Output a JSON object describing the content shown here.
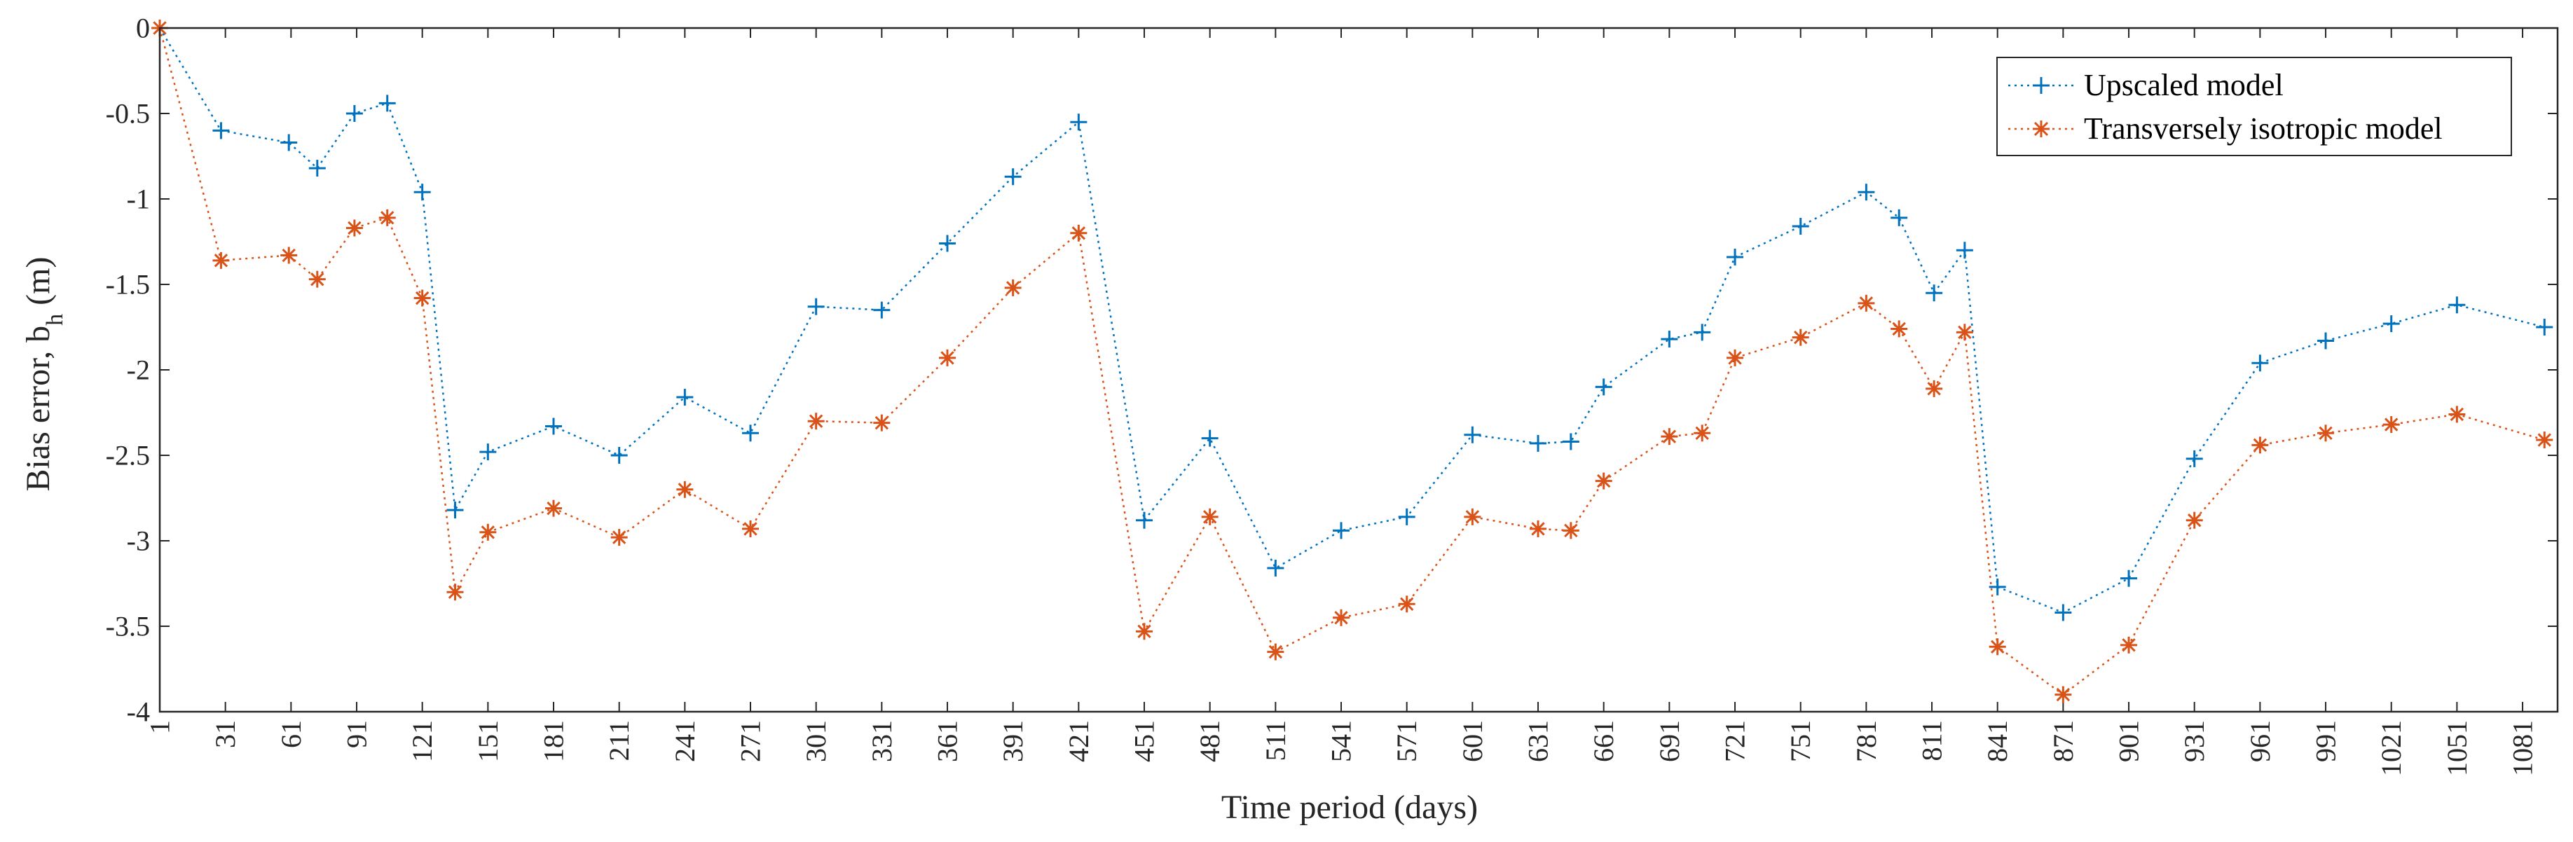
{
  "chart_data": {
    "type": "line",
    "title": "",
    "xlabel": "Time period (days)",
    "ylabel": "Bias error, b",
    "ylabel_subscript": "h",
    "ylabel_unit": " (m)",
    "xlim": [
      1,
      1097
    ],
    "ylim": [
      -4,
      0
    ],
    "xticks": [
      1,
      31,
      61,
      91,
      121,
      151,
      181,
      211,
      241,
      271,
      301,
      331,
      361,
      391,
      421,
      451,
      481,
      511,
      541,
      571,
      601,
      631,
      661,
      691,
      721,
      751,
      781,
      811,
      841,
      871,
      901,
      931,
      961,
      991,
      1021,
      1051,
      1081
    ],
    "yticks": [
      0,
      -0.5,
      -1,
      -1.5,
      -2,
      -2.5,
      -3,
      -3.5,
      -4
    ],
    "ytick_labels": [
      "0",
      "-0.5",
      "-1",
      "-1.5",
      "-2",
      "-2.5",
      "-3",
      "-3.5",
      "-4"
    ],
    "legend_position": "top-right",
    "series": [
      {
        "name": "Upscaled model",
        "color": "#0072BD",
        "marker": "plus",
        "x": [
          1,
          29,
          60,
          73,
          90,
          105,
          121,
          136,
          151,
          181,
          211,
          241,
          271,
          301,
          331,
          361,
          391,
          421,
          451,
          481,
          511,
          541,
          571,
          601,
          631,
          646,
          661,
          691,
          706,
          721,
          751,
          781,
          796,
          812,
          826,
          841,
          871,
          901,
          931,
          961,
          991,
          1021,
          1051,
          1091
        ],
        "values": [
          0,
          -0.6,
          -0.67,
          -0.82,
          -0.5,
          -0.44,
          -0.96,
          -2.82,
          -2.48,
          -2.33,
          -2.5,
          -2.16,
          -2.37,
          -1.63,
          -1.65,
          -1.26,
          -0.87,
          -0.55,
          -2.88,
          -2.4,
          -3.16,
          -2.94,
          -2.86,
          -2.38,
          -2.43,
          -2.42,
          -2.1,
          -1.82,
          -1.78,
          -1.34,
          -1.16,
          -0.96,
          -1.11,
          -1.55,
          -1.3,
          -3.27,
          -3.42,
          -3.22,
          -2.52,
          -1.96,
          -1.83,
          -1.73,
          -1.62,
          -1.75
        ]
      },
      {
        "name": "Transversely isotropic model",
        "color": "#D95319",
        "marker": "asterisk",
        "x": [
          1,
          29,
          60,
          73,
          90,
          105,
          121,
          136,
          151,
          181,
          211,
          241,
          271,
          301,
          331,
          361,
          391,
          421,
          451,
          481,
          511,
          541,
          571,
          601,
          631,
          646,
          661,
          691,
          706,
          721,
          751,
          781,
          796,
          812,
          826,
          841,
          871,
          901,
          931,
          961,
          991,
          1021,
          1051,
          1091
        ],
        "values": [
          0,
          -1.36,
          -1.33,
          -1.47,
          -1.17,
          -1.11,
          -1.58,
          -3.3,
          -2.95,
          -2.81,
          -2.98,
          -2.7,
          -2.93,
          -2.3,
          -2.31,
          -1.93,
          -1.52,
          -1.2,
          -3.53,
          -2.86,
          -3.65,
          -3.45,
          -3.37,
          -2.86,
          -2.93,
          -2.94,
          -2.65,
          -2.39,
          -2.37,
          -1.93,
          -1.81,
          -1.61,
          -1.76,
          -2.11,
          -1.78,
          -3.62,
          -3.9,
          -3.61,
          -2.88,
          -2.44,
          -2.37,
          -2.32,
          -2.26,
          -2.41
        ]
      }
    ]
  }
}
